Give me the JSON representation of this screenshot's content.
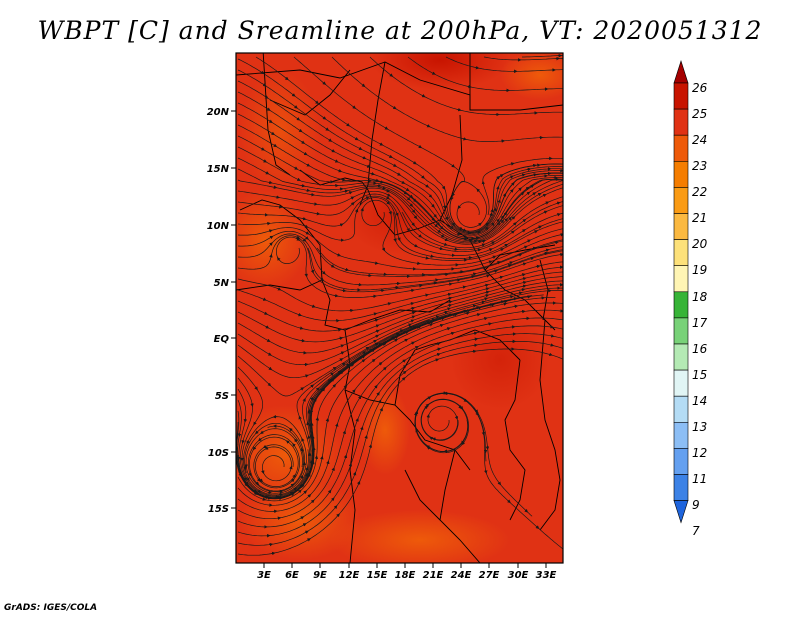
{
  "title": "WBPT [C] and Sreamline at 200hPa, VT: 2020051312",
  "credit": "GrADS: IGES/COLA",
  "map": {
    "lat_ticks": [
      "20N",
      "15N",
      "10N",
      "5N",
      "EQ",
      "5S",
      "10S",
      "15S"
    ],
    "lon_ticks": [
      "3E",
      "6E",
      "9E",
      "12E",
      "15E",
      "18E",
      "21E",
      "24E",
      "27E",
      "30E",
      "33E"
    ],
    "base_color": "#e03214",
    "streamline_color": "#1a1a1a"
  },
  "colorbar": {
    "labels": [
      "26",
      "25",
      "24",
      "23",
      "22",
      "21",
      "20",
      "19",
      "18",
      "17",
      "16",
      "15",
      "14",
      "13",
      "12",
      "11",
      "9",
      "7"
    ],
    "colors": [
      "#a50000",
      "#c81400",
      "#e03214",
      "#ee5a0a",
      "#f57d00",
      "#fa9b14",
      "#fbb941",
      "#fde17a",
      "#fff5b4",
      "#37b437",
      "#78d278",
      "#b4eab4",
      "#e1f5f5",
      "#b4dcf5",
      "#8cbef5",
      "#64a0f0",
      "#3c82e6",
      "#1e64dc"
    ]
  }
}
